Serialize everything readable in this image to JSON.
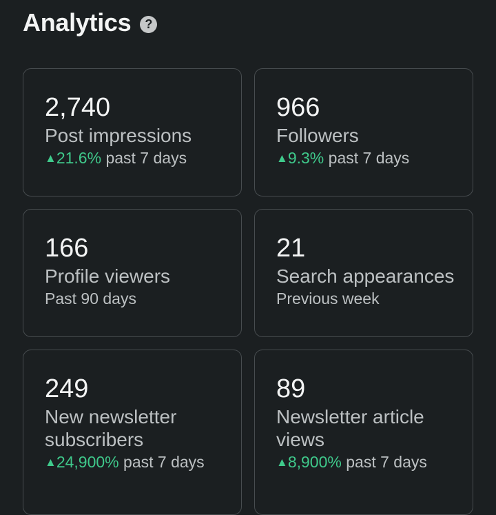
{
  "header": {
    "title": "Analytics",
    "help_glyph": "?"
  },
  "colors": {
    "background": "#1b1f21",
    "card_border": "#474c4f",
    "positive": "#3fc98b"
  },
  "cards": [
    {
      "value": "2,740",
      "label_lines": [
        "Post impressions"
      ],
      "trend_arrow": "▲",
      "trend_percent": "21.6%",
      "trend_period": "past 7 days"
    },
    {
      "value": "966",
      "label_lines": [
        "Followers"
      ],
      "trend_arrow": "▲",
      "trend_percent": "9.3%",
      "trend_period": "past 7 days"
    },
    {
      "value": "166",
      "label_lines": [
        "Profile viewers"
      ],
      "period": "Past 90 days"
    },
    {
      "value": "21",
      "label_lines": [
        "Search appearances"
      ],
      "period": "Previous week"
    },
    {
      "value": "249",
      "label_lines": [
        "New newsletter",
        "subscribers"
      ],
      "trend_arrow": "▲",
      "trend_percent": "24,900%",
      "trend_period": "past 7 days"
    },
    {
      "value": "89",
      "label_lines": [
        "Newsletter article",
        "views"
      ],
      "trend_arrow": "▲",
      "trend_percent": "8,900%",
      "trend_period": "past 7 days"
    }
  ]
}
